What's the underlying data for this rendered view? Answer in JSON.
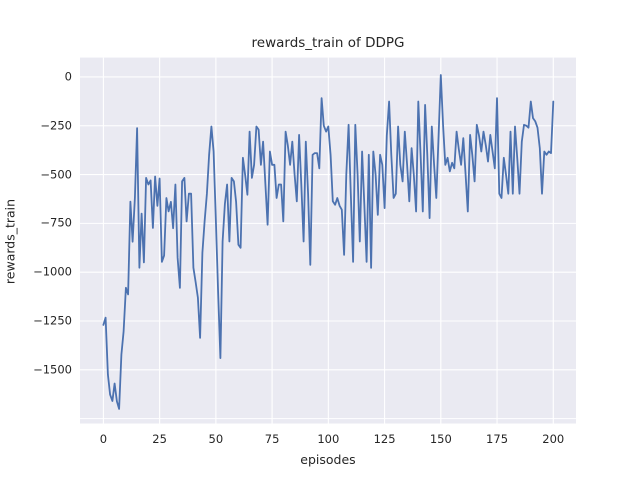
{
  "figure": {
    "background": "#ffffff"
  },
  "chart_data": {
    "type": "line",
    "title": "rewards_train of DDPG",
    "xlabel": "episodes",
    "ylabel": "rewards_train",
    "legend": null,
    "grid": true,
    "x_ticks": [
      0,
      25,
      50,
      75,
      100,
      125,
      150,
      175,
      200
    ],
    "y_ticks": [
      0,
      -250,
      -500,
      -750,
      -1000,
      -1250,
      -1500
    ],
    "xlim": [
      -10.4,
      210.1
    ],
    "ylim": [
      -1775,
      99
    ],
    "style": {
      "plot_background": "#eaeaf2",
      "grid_color": "#ffffff",
      "line_color": "#4c72b0",
      "text_color": "#262626",
      "line_width": 1.8
    },
    "series": [
      {
        "name": "rewards_train",
        "x_start": 0,
        "x_step": 1,
        "values": [
          -1270,
          -1233,
          -1524,
          -1627,
          -1660,
          -1570,
          -1662,
          -1700,
          -1422,
          -1304,
          -1080,
          -1114,
          -639,
          -844,
          -619,
          -262,
          -977,
          -700,
          -950,
          -517,
          -551,
          -530,
          -773,
          -510,
          -660,
          -520,
          -947,
          -915,
          -620,
          -688,
          -640,
          -775,
          -551,
          -926,
          -1080,
          -535,
          -517,
          -740,
          -598,
          -598,
          -977,
          -1050,
          -1131,
          -1336,
          -900,
          -740,
          -598,
          -400,
          -254,
          -382,
          -740,
          -1100,
          -1440,
          -843,
          -650,
          -551,
          -843,
          -517,
          -535,
          -640,
          -859,
          -875,
          -414,
          -500,
          -603,
          -280,
          -517,
          -450,
          -254,
          -270,
          -450,
          -331,
          -550,
          -757,
          -382,
          -450,
          -450,
          -620,
          -551,
          -551,
          -740,
          -280,
          -350,
          -450,
          -331,
          -500,
          -637,
          -297,
          -550,
          -843,
          -331,
          -600,
          -962,
          -399,
          -390,
          -390,
          -468,
          -109,
          -250,
          -280,
          -254,
          -400,
          -637,
          -655,
          -620,
          -660,
          -680,
          -911,
          -500,
          -245,
          -600,
          -947,
          -245,
          -500,
          -843,
          -382,
          -650,
          -947,
          -399,
          -978,
          -382,
          -500,
          -706,
          -399,
          -450,
          -672,
          -300,
          -126,
          -400,
          -620,
          -598,
          -254,
          -450,
          -535,
          -280,
          -450,
          -637,
          -365,
          -500,
          -689,
          -126,
          -400,
          -689,
          -143,
          -400,
          -723,
          -254,
          -450,
          -620,
          -300,
          10,
          -250,
          -450,
          -414,
          -484,
          -440,
          -468,
          -280,
          -370,
          -450,
          -314,
          -500,
          -689,
          -297,
          -400,
          -535,
          -245,
          -300,
          -382,
          -280,
          -350,
          -433,
          -297,
          -380,
          -468,
          -109,
          -598,
          -620,
          -414,
          -500,
          -598,
          -280,
          -598,
          -254,
          -420,
          -598,
          -331,
          -245,
          -250,
          -260,
          -126,
          -211,
          -228,
          -260,
          -365,
          -598,
          -382,
          -399,
          -382,
          -390,
          -126
        ]
      }
    ]
  }
}
